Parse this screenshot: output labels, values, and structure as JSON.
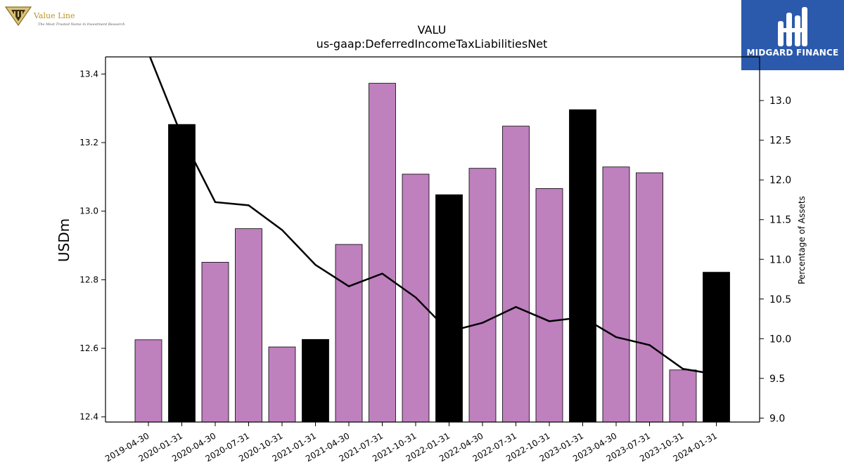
{
  "branding": {
    "left_logo": {
      "name": "Value Line",
      "tagline": "The Most Trusted Name in Investment Research"
    },
    "right_logo": {
      "name": "MIDGARD FINANCE"
    }
  },
  "colors": {
    "bar_normal": "#bf80be",
    "bar_highlight": "#000000",
    "line": "#000000",
    "brand_blue": "#2b5aad",
    "gold": "#b8952a"
  },
  "chart_data": {
    "type": "bar",
    "title": "VALU",
    "subtitle": "us-gaap:DeferredIncomeTaxLiabilitiesNet",
    "ylabel": "USDm",
    "y2label": "Percentage of Assets",
    "categories": [
      "2019-04-30",
      "2020-01-31",
      "2020-04-30",
      "2020-07-31",
      "2020-10-31",
      "2021-01-31",
      "2021-04-30",
      "2021-07-31",
      "2021-10-31",
      "2022-01-31",
      "2022-04-30",
      "2022-07-31",
      "2022-10-31",
      "2023-01-31",
      "2023-04-30",
      "2023-07-31",
      "2023-10-31",
      "2024-01-31"
    ],
    "values": [
      12.625,
      13.253,
      12.851,
      12.949,
      12.604,
      12.626,
      12.903,
      13.373,
      13.108,
      13.048,
      13.125,
      13.248,
      13.066,
      13.296,
      13.129,
      13.112,
      12.537,
      12.822
    ],
    "highlight": [
      false,
      true,
      false,
      false,
      false,
      true,
      false,
      false,
      false,
      true,
      false,
      false,
      false,
      true,
      false,
      false,
      false,
      true
    ],
    "line_values": [
      13.6,
      12.55,
      11.72,
      11.68,
      11.37,
      10.93,
      10.66,
      10.82,
      10.52,
      10.09,
      10.2,
      10.4,
      10.22,
      10.27,
      10.02,
      9.92,
      9.62,
      9.55
    ],
    "ylim": [
      12.385,
      13.45
    ],
    "y2lim": [
      8.95,
      13.55
    ],
    "yticks": [
      12.4,
      12.6,
      12.8,
      13.0,
      13.2,
      13.4
    ],
    "y2ticks": [
      9.0,
      9.5,
      10.0,
      10.5,
      11.0,
      11.5,
      12.0,
      12.5,
      13.0
    ],
    "grid": false
  }
}
